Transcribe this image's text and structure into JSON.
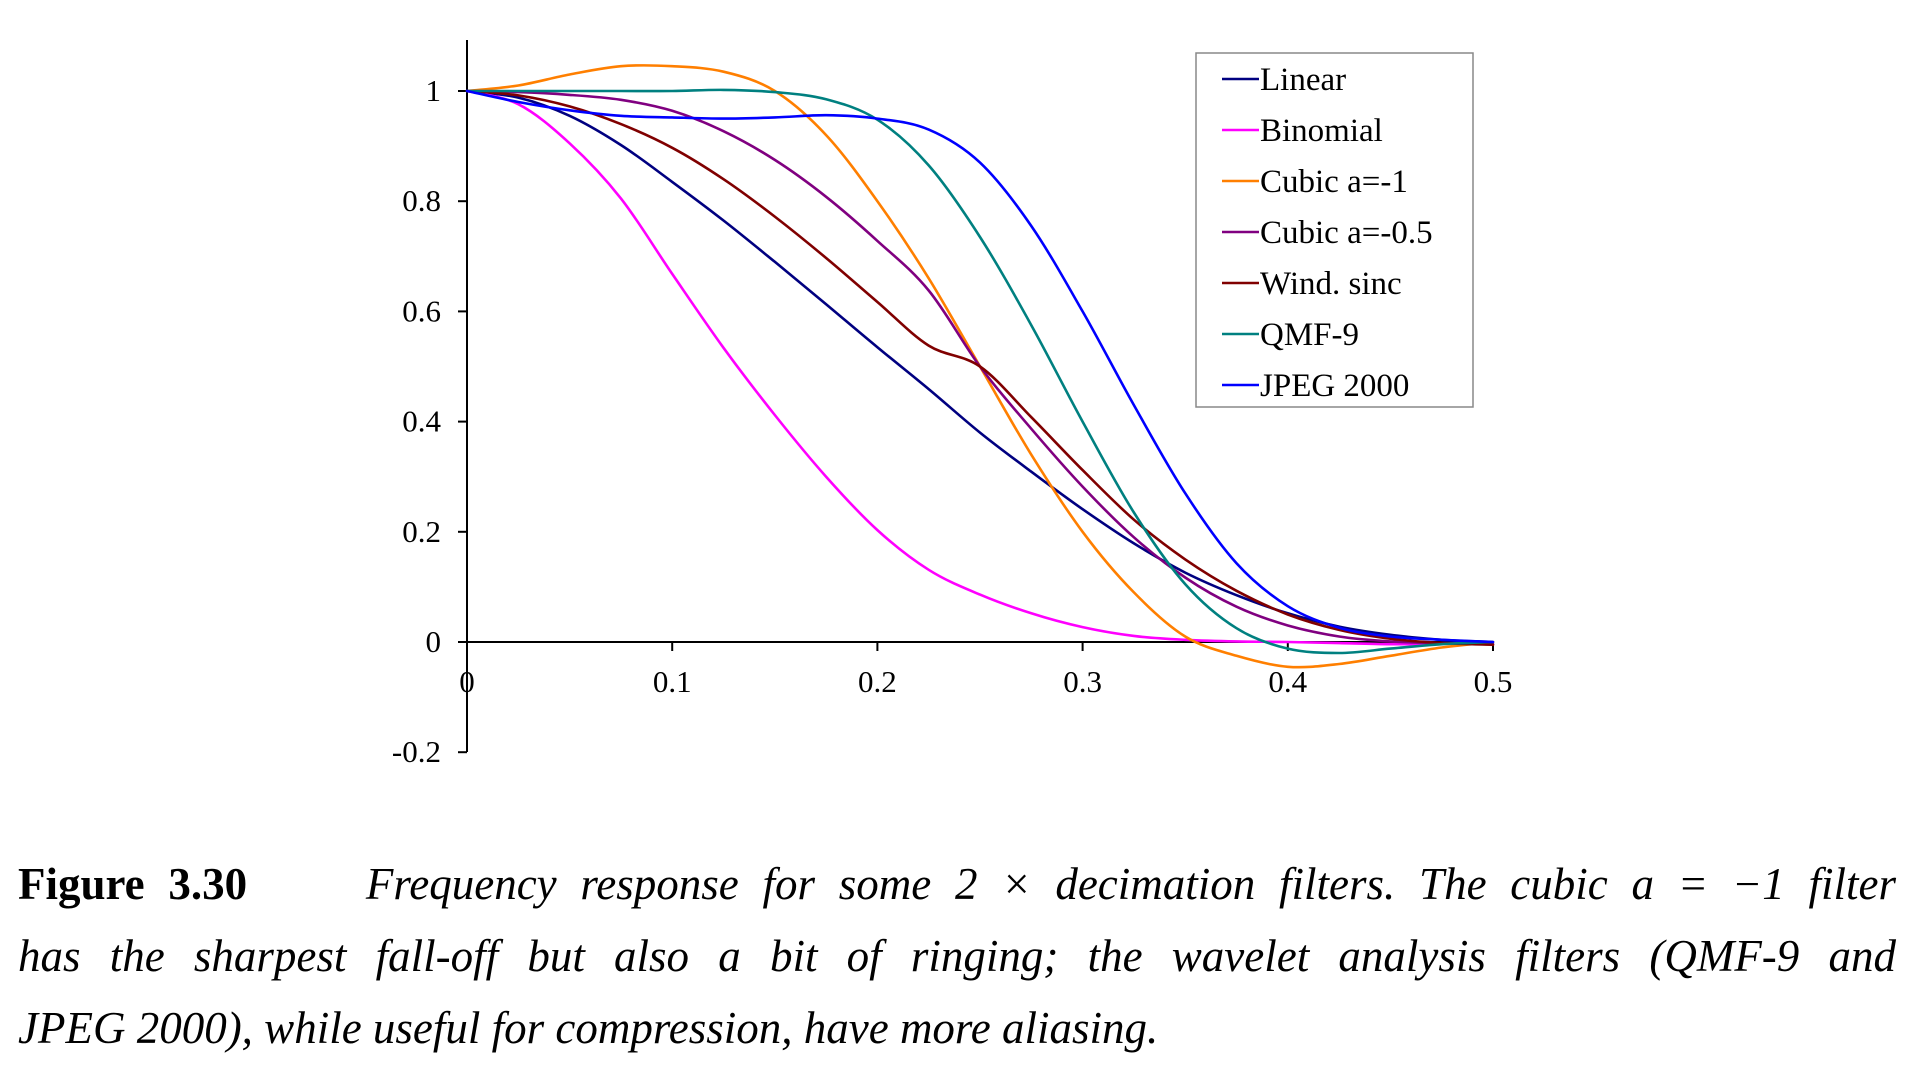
{
  "chart_data": {
    "type": "line",
    "title": "",
    "xlabel": "",
    "ylabel": "",
    "xlim": [
      0,
      0.5
    ],
    "ylim": [
      -0.2,
      1.1
    ],
    "xticks": [
      "0",
      "0.1",
      "0.2",
      "0.3",
      "0.4",
      "0.5"
    ],
    "yticks": [
      "-0.2",
      "0",
      "0.2",
      "0.4",
      "0.6",
      "0.8",
      "1"
    ],
    "grid": false,
    "legend_position": "top-right",
    "x": [
      0,
      0.025,
      0.05,
      0.075,
      0.1,
      0.125,
      0.15,
      0.175,
      0.2,
      0.225,
      0.25,
      0.275,
      0.3,
      0.325,
      0.35,
      0.375,
      0.4,
      0.425,
      0.45,
      0.475,
      0.5
    ],
    "series": [
      {
        "name": "Linear",
        "color": "#000080",
        "values": [
          1.0,
          0.988,
          0.955,
          0.902,
          0.835,
          0.765,
          0.69,
          0.613,
          0.535,
          0.459,
          0.38,
          0.309,
          0.241,
          0.179,
          0.126,
          0.085,
          0.052,
          0.028,
          0.013,
          0.004,
          0.0
        ]
      },
      {
        "name": "Binomial",
        "color": "#ff00ff",
        "values": [
          1.0,
          0.976,
          0.905,
          0.805,
          0.668,
          0.534,
          0.412,
          0.3,
          0.203,
          0.131,
          0.086,
          0.052,
          0.027,
          0.011,
          0.004,
          0.001,
          0.0,
          -0.002,
          -0.004,
          -0.003,
          0.0
        ]
      },
      {
        "name": "Cubic a=-1",
        "color": "#ff7f00",
        "values": [
          1.0,
          1.01,
          1.03,
          1.045,
          1.045,
          1.035,
          1.0,
          0.92,
          0.8,
          0.66,
          0.5,
          0.34,
          0.2,
          0.09,
          0.01,
          -0.025,
          -0.045,
          -0.04,
          -0.025,
          -0.01,
          0.0
        ]
      },
      {
        "name": "Cubic a=-0.5",
        "color": "#800080",
        "values": [
          1.0,
          0.998,
          0.993,
          0.984,
          0.964,
          0.927,
          0.875,
          0.808,
          0.728,
          0.638,
          0.5,
          0.387,
          0.282,
          0.19,
          0.117,
          0.064,
          0.03,
          0.01,
          0.001,
          -0.002,
          -0.004
        ]
      },
      {
        "name": "Wind. sinc",
        "color": "#800000",
        "values": [
          1.0,
          0.992,
          0.972,
          0.94,
          0.897,
          0.84,
          0.772,
          0.697,
          0.617,
          0.538,
          0.5,
          0.408,
          0.312,
          0.222,
          0.15,
          0.093,
          0.05,
          0.022,
          0.006,
          -0.002,
          -0.005
        ]
      },
      {
        "name": "QMF-9",
        "color": "#008080",
        "values": [
          1.0,
          1.0,
          1.0,
          1.0,
          1.0,
          1.002,
          0.998,
          0.985,
          0.948,
          0.865,
          0.735,
          0.575,
          0.4,
          0.235,
          0.105,
          0.025,
          -0.012,
          -0.02,
          -0.012,
          -0.004,
          0.0
        ]
      },
      {
        "name": "JPEG 2000",
        "color": "#0000ff",
        "values": [
          1.0,
          0.98,
          0.965,
          0.955,
          0.952,
          0.95,
          0.952,
          0.956,
          0.95,
          0.93,
          0.87,
          0.755,
          0.6,
          0.43,
          0.27,
          0.143,
          0.065,
          0.026,
          0.01,
          0.004,
          0.0
        ]
      }
    ]
  },
  "caption": {
    "figure_label": "Figure 3.30",
    "line1": "Frequency response for some 2 × decimation filters. The cubic a = −1 filter",
    "line2": "has the sharpest fall-off but also a bit of ringing; the wavelet analysis filters (QMF-9 and",
    "line3": "JPEG 2000), while useful for compression, have more aliasing."
  }
}
